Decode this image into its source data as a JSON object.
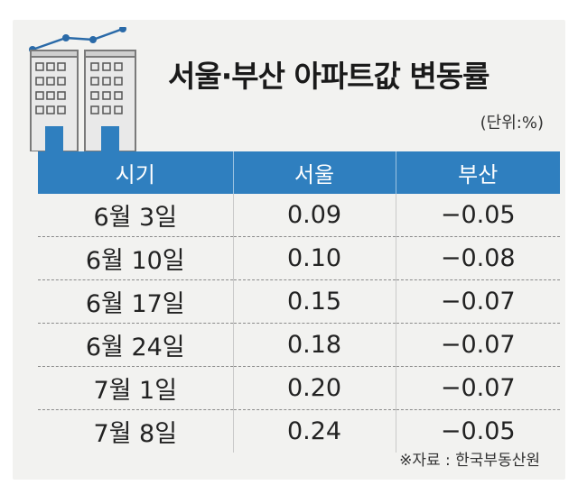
{
  "title": "서울·부산 아파트값 변동률",
  "unit": "(단위:%)",
  "table": {
    "headers": [
      "시기",
      "서울",
      "부산"
    ],
    "rows": [
      [
        "6월 3일",
        "0.09",
        "−0.05"
      ],
      [
        "6월 10일",
        "0.10",
        "−0.08"
      ],
      [
        "6월 17일",
        "0.15",
        "−0.07"
      ],
      [
        "6월 24일",
        "0.18",
        "−0.07"
      ],
      [
        "7월 1일",
        "0.20",
        "−0.07"
      ],
      [
        "7월 8일",
        "0.24",
        "−0.05"
      ]
    ]
  },
  "source": "※자료 : 한국부동산원",
  "colors": {
    "header": "#2f7fbf",
    "negative": "#b0153a",
    "background": "#f2f2f0",
    "line": "#2a6aa8"
  },
  "icons": [
    "apartment-buildings-icon",
    "rising-line-icon"
  ]
}
